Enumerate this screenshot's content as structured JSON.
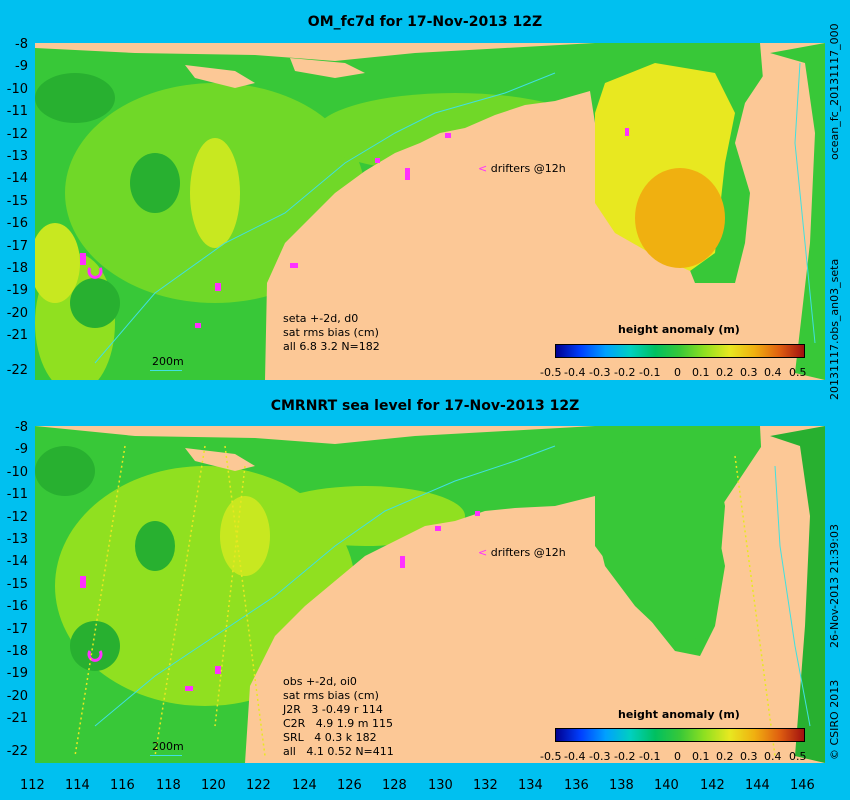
{
  "top": {
    "title": "OM_fc7d for 17-Nov-2013 12Z",
    "side_right": "ocean_fc_20131117_000",
    "side_left": "20131117.obs_an03_seta",
    "notes": [
      "seta +-2d, d0",
      "sat rms bias (cm)",
      "all 6.8 3.2 N=182"
    ],
    "drifters": "drifters @12h",
    "scale": "200m",
    "colorbar_label": "height anomaly (m)"
  },
  "bottom": {
    "title": "CMRNRT sea level  for 17-Nov-2013 12Z",
    "side_right": "26-Nov-2013 21:39:03",
    "side_left": "© CSIRO 2013",
    "notes": [
      "obs +-2d, oi0",
      "sat rms bias (cm)",
      "J2R   3 -0.49 r 114",
      "C2R   4.9 1.9 m 115",
      "SRL   4 0.3 k 182",
      "all   4.1 0.52 N=411"
    ],
    "drifters": "drifters @12h",
    "scale": "200m",
    "colorbar_label": "height anomaly (m)"
  },
  "y_ticks": [
    "-8",
    "-9",
    "-10",
    "-11",
    "-12",
    "-13",
    "-14",
    "-15",
    "-16",
    "-17",
    "-18",
    "-19",
    "-20",
    "-21",
    "-22"
  ],
  "x_ticks": [
    "112",
    "114",
    "116",
    "118",
    "120",
    "122",
    "124",
    "126",
    "128",
    "130",
    "132",
    "134",
    "136",
    "138",
    "140",
    "142",
    "144",
    "146"
  ],
  "colorbar_ticks": [
    "-0.5",
    "-0.4",
    "-0.3",
    "-0.2",
    "-0.1",
    "0",
    "0.1",
    "0.2",
    "0.3",
    "0.4",
    "0.5"
  ],
  "colors": {
    "background": "#00c0f0",
    "land": "#fcc896",
    "ocean_green": "#38c838",
    "ocean_light": "#90e020",
    "ocean_yellow": "#e8e820",
    "ocean_orange": "#f0b010",
    "drifter": "#ff30ff",
    "contour": "#40e0e0"
  }
}
